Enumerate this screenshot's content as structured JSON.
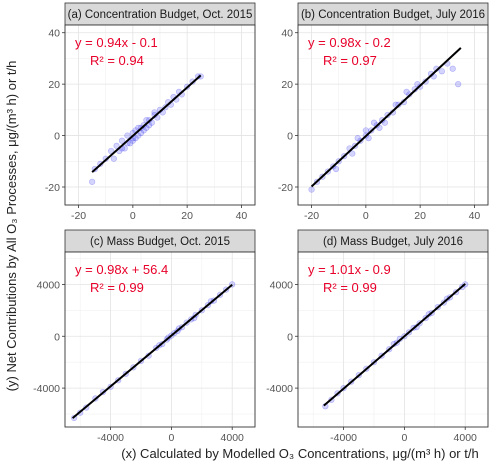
{
  "ylabel": "(y) Net Contributions by All O₃ Processes, μg/(m³ h) or t/h",
  "xlabel": "(x) Calculated by Modelled O₃ Concentrations, μg/(m³ h) or t/h",
  "chart_data": [
    {
      "type": "scatter",
      "title": "(a) Concentration Budget, Oct. 2015",
      "xlim": [
        -25,
        45
      ],
      "ylim": [
        -27,
        43
      ],
      "xticks": [
        -20,
        0,
        20,
        40
      ],
      "yticks": [
        -20,
        0,
        20,
        40
      ],
      "xtick_labels": [
        "-20",
        "0",
        "20",
        "40"
      ],
      "ytick_labels": [
        "-20",
        "0",
        "20",
        "40"
      ],
      "fit": {
        "slope": 0.94,
        "intercept": -0.1,
        "x_range": [
          -15,
          25
        ]
      },
      "equation": "y = 0.94x - 0.1",
      "r2": "R² = 0.94",
      "point_color": "#3d3df0",
      "points": [
        [
          -15,
          -18
        ],
        [
          -14,
          -13
        ],
        [
          -12,
          -11
        ],
        [
          -10,
          -9
        ],
        [
          -8,
          -6
        ],
        [
          -7,
          -9
        ],
        [
          -6,
          -4
        ],
        [
          -5,
          -6
        ],
        [
          -4,
          -2
        ],
        [
          -3,
          -5
        ],
        [
          -2,
          0
        ],
        [
          -1,
          -3
        ],
        [
          0,
          1
        ],
        [
          0,
          -2
        ],
        [
          1,
          2
        ],
        [
          2,
          0
        ],
        [
          3,
          3
        ],
        [
          4,
          4
        ],
        [
          5,
          3
        ],
        [
          6,
          6
        ],
        [
          7,
          5
        ],
        [
          8,
          8
        ],
        [
          9,
          7
        ],
        [
          10,
          10
        ],
        [
          11,
          9
        ],
        [
          12,
          11
        ],
        [
          13,
          13
        ],
        [
          14,
          12
        ],
        [
          15,
          15
        ],
        [
          16,
          14
        ],
        [
          17,
          17
        ],
        [
          18,
          16
        ],
        [
          20,
          19
        ],
        [
          22,
          21
        ],
        [
          24,
          23
        ],
        [
          25,
          23
        ],
        [
          -2,
          -3
        ],
        [
          0,
          -1
        ],
        [
          2,
          3
        ],
        [
          4,
          2
        ],
        [
          6,
          4
        ],
        [
          8,
          9
        ],
        [
          -4,
          -5
        ],
        [
          3,
          1
        ],
        [
          5,
          6
        ],
        [
          1,
          -1
        ]
      ]
    },
    {
      "type": "scatter",
      "title": "(b) Concentration Budget, July 2016",
      "xlim": [
        -25,
        45
      ],
      "ylim": [
        -27,
        43
      ],
      "xticks": [
        -20,
        0,
        20,
        40
      ],
      "yticks": [
        -20,
        0,
        20,
        40
      ],
      "xtick_labels": [
        "-20",
        "0",
        "20",
        "40"
      ],
      "ytick_labels": [
        "-20",
        "0",
        "20",
        "40"
      ],
      "fit": {
        "slope": 0.98,
        "intercept": -0.2,
        "x_range": [
          -20,
          35
        ]
      },
      "equation": "y = 0.98x - 0.2",
      "r2": "R² = 0.97",
      "point_color": "#3d3df0",
      "points": [
        [
          -20,
          -21
        ],
        [
          -18,
          -18
        ],
        [
          -16,
          -16
        ],
        [
          -14,
          -14
        ],
        [
          -12,
          -12
        ],
        [
          -10,
          -10
        ],
        [
          -8,
          -8
        ],
        [
          -6,
          -5
        ],
        [
          -4,
          -4
        ],
        [
          -2,
          -2
        ],
        [
          0,
          0
        ],
        [
          1,
          -1
        ],
        [
          2,
          2
        ],
        [
          4,
          4
        ],
        [
          5,
          3
        ],
        [
          6,
          6
        ],
        [
          8,
          8
        ],
        [
          10,
          9
        ],
        [
          12,
          12
        ],
        [
          14,
          13
        ],
        [
          16,
          16
        ],
        [
          18,
          18
        ],
        [
          20,
          19
        ],
        [
          22,
          21
        ],
        [
          24,
          24
        ],
        [
          26,
          26
        ],
        [
          28,
          25
        ],
        [
          30,
          28
        ],
        [
          32,
          26
        ],
        [
          34,
          20
        ],
        [
          -5,
          -7
        ],
        [
          -3,
          -1
        ],
        [
          3,
          5
        ],
        [
          7,
          5
        ],
        [
          15,
          17
        ],
        [
          19,
          20
        ],
        [
          25,
          23
        ],
        [
          -11,
          -13
        ],
        [
          11,
          12
        ],
        [
          0,
          2
        ]
      ]
    },
    {
      "type": "scatter",
      "title": "(c) Mass Budget, Oct. 2015",
      "xlim": [
        -7000,
        5500
      ],
      "ylim": [
        -7000,
        6500
      ],
      "xticks": [
        -4000,
        0,
        4000
      ],
      "yticks": [
        -4000,
        0,
        4000
      ],
      "xtick_labels": [
        "-4000",
        "0",
        "4000"
      ],
      "ytick_labels": [
        "-4000",
        "0",
        "4000"
      ],
      "fit": {
        "slope": 0.98,
        "intercept": 56.4,
        "x_range": [
          -6500,
          4000
        ]
      },
      "equation": "y = 0.98x + 56.4",
      "r2": "R² = 0.99",
      "point_color": "#3d3df0",
      "points": [
        [
          -6400,
          -6300
        ],
        [
          -6000,
          -5900
        ],
        [
          -5600,
          -5500
        ],
        [
          -5000,
          -4800
        ],
        [
          -4500,
          -4300
        ],
        [
          -4000,
          -3900
        ],
        [
          -3500,
          -3400
        ],
        [
          -3000,
          -2900
        ],
        [
          -2500,
          -2400
        ],
        [
          -2000,
          -1900
        ],
        [
          -1500,
          -1500
        ],
        [
          -1000,
          -900
        ],
        [
          -600,
          -600
        ],
        [
          -300,
          -250
        ],
        [
          0,
          50
        ],
        [
          200,
          250
        ],
        [
          400,
          400
        ],
        [
          700,
          700
        ],
        [
          1000,
          1050
        ],
        [
          1300,
          1300
        ],
        [
          1600,
          1650
        ],
        [
          2000,
          2000
        ],
        [
          2400,
          2400
        ],
        [
          2800,
          2750
        ],
        [
          3200,
          3200
        ],
        [
          3600,
          3600
        ],
        [
          4000,
          4000
        ],
        [
          -800,
          -700
        ],
        [
          500,
          600
        ],
        [
          1500,
          1400
        ],
        [
          -200,
          -100
        ],
        [
          2600,
          2700
        ]
      ]
    },
    {
      "type": "scatter",
      "title": "(d) Mass Budget, July 2016",
      "xlim": [
        -7000,
        5500
      ],
      "ylim": [
        -7000,
        6500
      ],
      "xticks": [
        -4000,
        0,
        4000
      ],
      "yticks": [
        -4000,
        0,
        4000
      ],
      "xtick_labels": [
        "-4000",
        "0",
        "4000"
      ],
      "ytick_labels": [
        "-4000",
        "0",
        "4000"
      ],
      "fit": {
        "slope": 1.01,
        "intercept": -0.9,
        "x_range": [
          -5300,
          4000
        ]
      },
      "equation": "y = 1.01x - 0.9",
      "r2": "R² = 0.99",
      "point_color": "#3d3df0",
      "points": [
        [
          -5200,
          -5400
        ],
        [
          -4800,
          -4900
        ],
        [
          -4400,
          -4400
        ],
        [
          -4000,
          -4000
        ],
        [
          -3500,
          -3500
        ],
        [
          -3000,
          -3000
        ],
        [
          -2500,
          -2500
        ],
        [
          -2000,
          -2000
        ],
        [
          -1500,
          -1500
        ],
        [
          -1000,
          -1000
        ],
        [
          -500,
          -500
        ],
        [
          0,
          0
        ],
        [
          300,
          300
        ],
        [
          600,
          650
        ],
        [
          1000,
          1000
        ],
        [
          1400,
          1400
        ],
        [
          1800,
          1800
        ],
        [
          2200,
          2250
        ],
        [
          2600,
          2600
        ],
        [
          3000,
          3000
        ],
        [
          3400,
          3400
        ],
        [
          3800,
          3800
        ],
        [
          4000,
          4000
        ],
        [
          -700,
          -600
        ],
        [
          800,
          700
        ],
        [
          1600,
          1700
        ],
        [
          -300,
          -200
        ],
        [
          2800,
          2900
        ]
      ]
    }
  ]
}
